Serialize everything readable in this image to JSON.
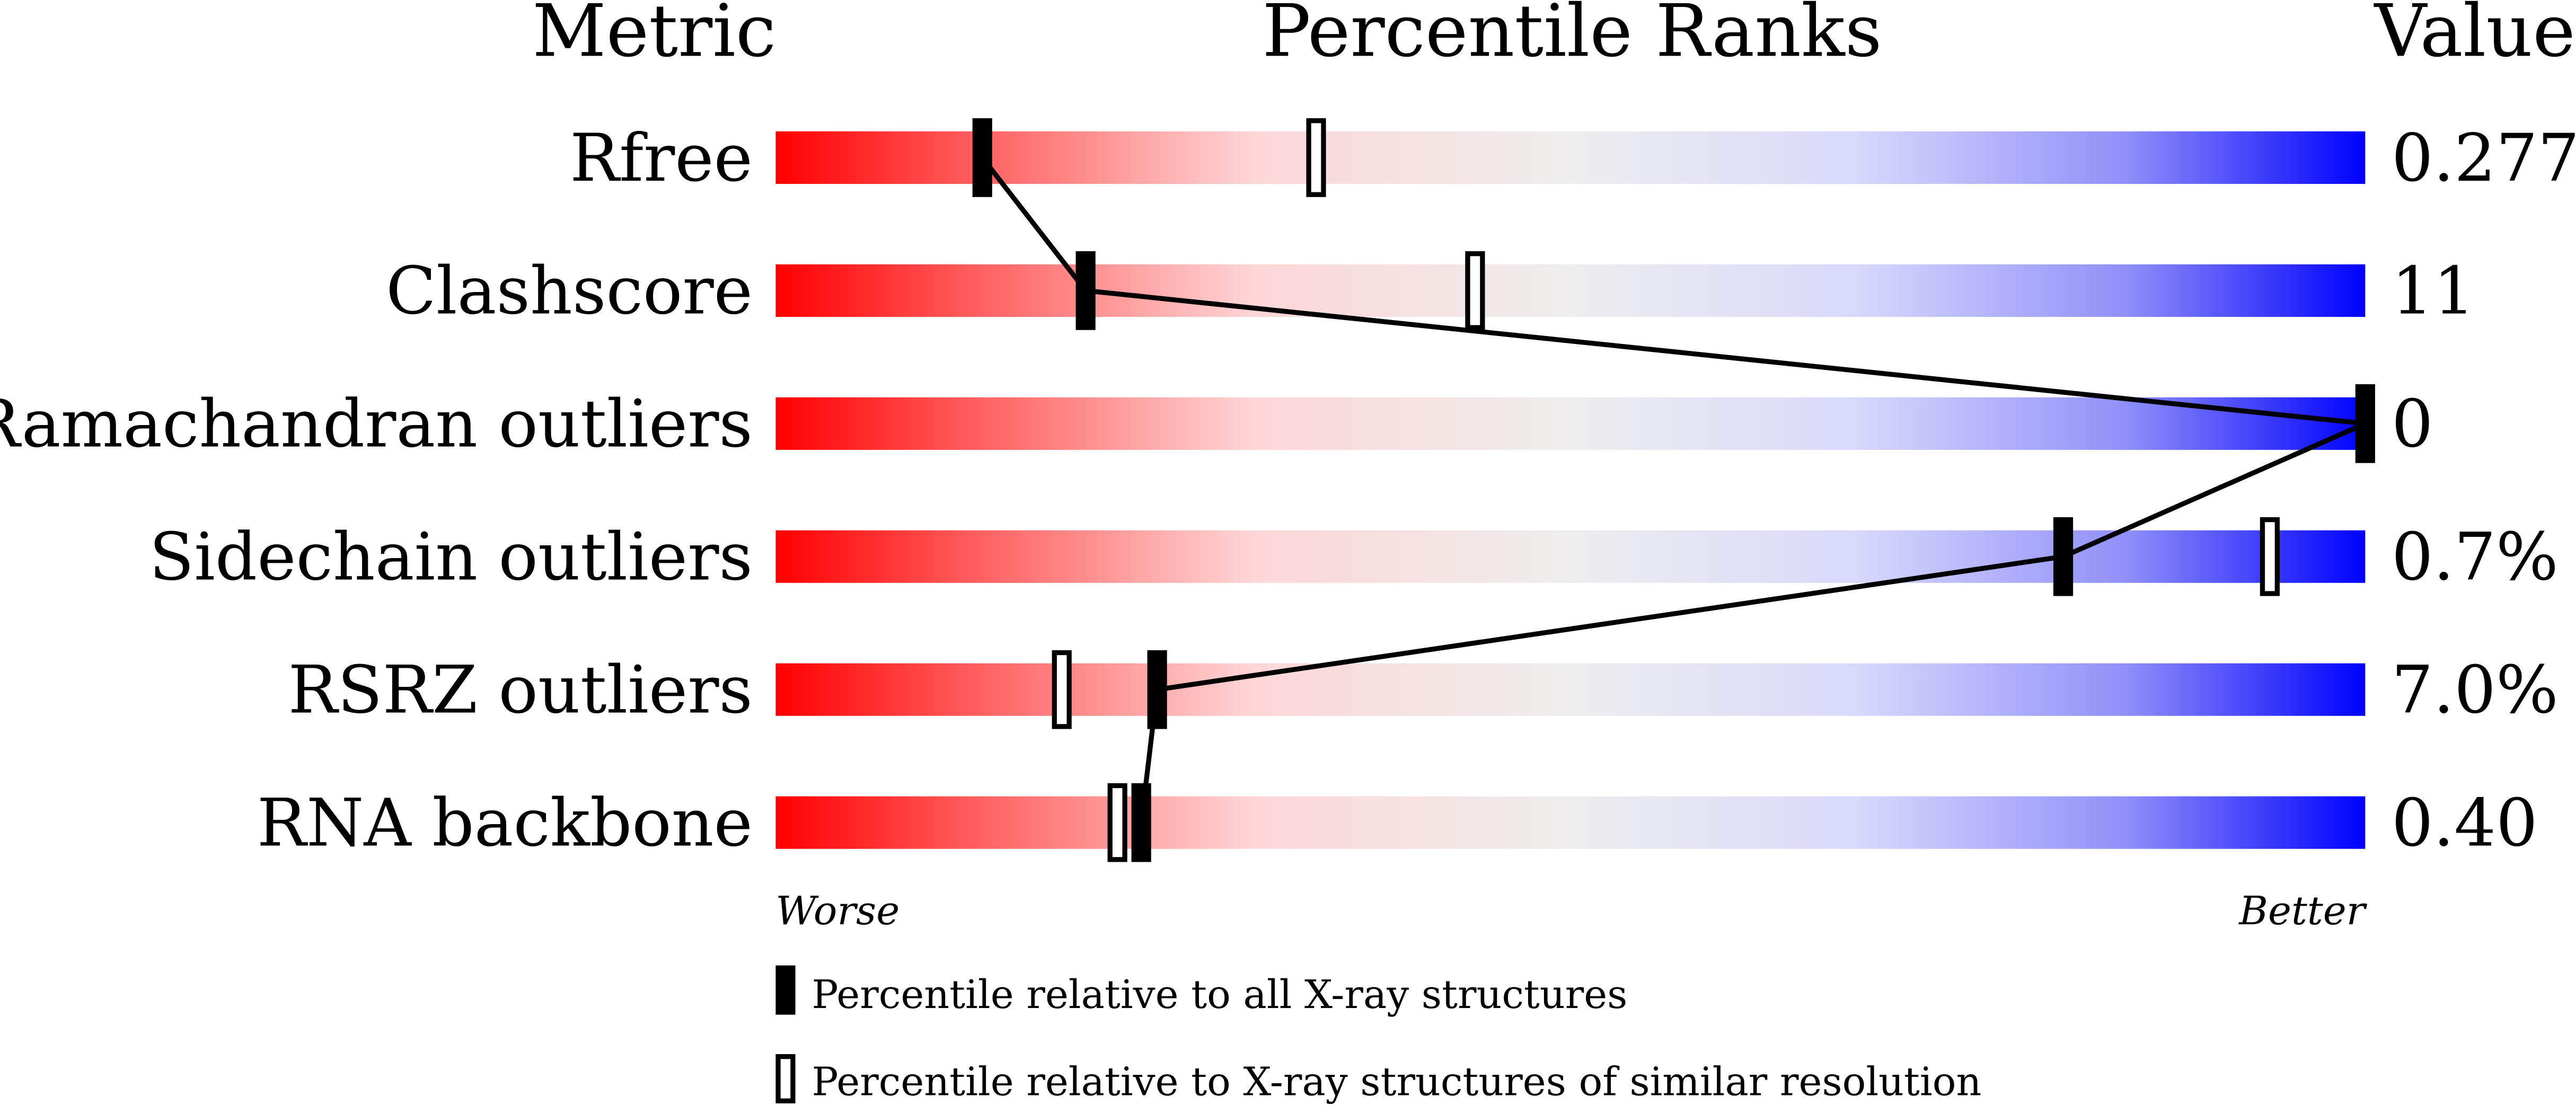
{
  "chart_data": {
    "type": "bar",
    "headers": {
      "metric": "Metric",
      "percentile": "Percentile Ranks",
      "value": "Value"
    },
    "xlim": [
      0,
      100
    ],
    "axis_labels": {
      "worse": "Worse",
      "better": "Better"
    },
    "rows": [
      {
        "metric": "Rfree",
        "value": "0.277",
        "percentile_all": 13,
        "percentile_similar": 34
      },
      {
        "metric": "Clashscore",
        "value": "11",
        "percentile_all": 19.5,
        "percentile_similar": 44
      },
      {
        "metric": "Ramachandran outliers",
        "value": "0",
        "percentile_all": 100,
        "percentile_similar": null
      },
      {
        "metric": "Sidechain outliers",
        "value": "0.7%",
        "percentile_all": 81,
        "percentile_similar": 94
      },
      {
        "metric": "RSRZ outliers",
        "value": "7.0%",
        "percentile_all": 24,
        "percentile_similar": 18
      },
      {
        "metric": "RNA backbone",
        "value": "0.40",
        "percentile_all": 23,
        "percentile_similar": 21.5
      }
    ],
    "legend": [
      {
        "marker": "filled",
        "label": "Percentile relative to all X-ray structures"
      },
      {
        "marker": "hollow",
        "label": "Percentile relative to X-ray structures of similar resolution"
      }
    ],
    "colors": {
      "worse": "#ff0000",
      "middle": "#eeeeee",
      "better": "#0000ff",
      "marker": "#000000"
    }
  }
}
